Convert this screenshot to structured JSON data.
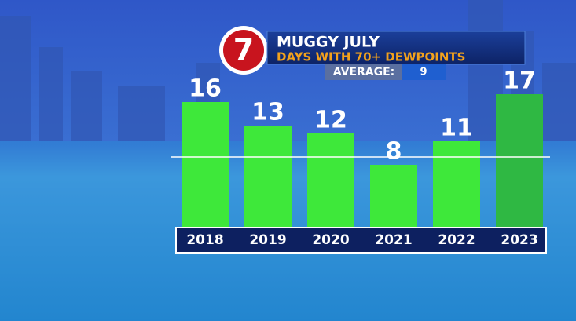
{
  "chart_data": {
    "type": "bar",
    "logo": "7",
    "title": "MUGGY JULY",
    "subtitle": "DAYS WITH 70+ DEWPOINTS",
    "average_label": "AVERAGE:",
    "average": 9,
    "categories": [
      "2018",
      "2019",
      "2020",
      "2021",
      "2022",
      "2023"
    ],
    "values": [
      16,
      13,
      12,
      8,
      11,
      17
    ],
    "colors": [
      "#3ee83a",
      "#3ee83a",
      "#3ee83a",
      "#3ee83a",
      "#3ee83a",
      "#2fb843"
    ]
  }
}
